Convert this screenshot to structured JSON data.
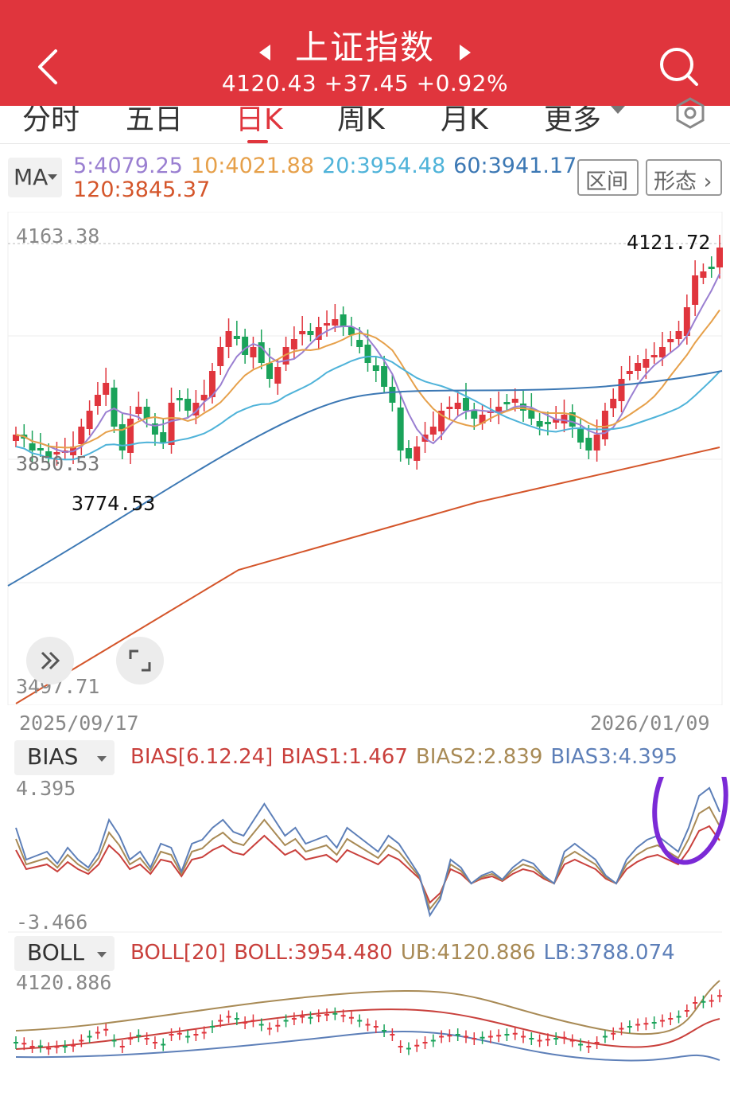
{
  "header": {
    "title": "上证指数",
    "price": "4120.43",
    "change": "+37.45",
    "change_pct": "+0.92%",
    "bg_color": "#e0353d"
  },
  "tabs": [
    {
      "label": "分时",
      "active": false
    },
    {
      "label": "五日",
      "active": false
    },
    {
      "label": "日K",
      "active": true
    },
    {
      "label": "周K",
      "active": false
    },
    {
      "label": "月K",
      "active": false
    },
    {
      "label": "更多",
      "active": false
    }
  ],
  "ma": {
    "selector": "MA",
    "ma5": "5:4079.25",
    "ma10": "10:4021.88",
    "ma20": "20:3954.48",
    "ma60": "60:3941.17",
    "ma120": "120:3845.37",
    "colors": {
      "ma5": "#9a7fd1",
      "ma10": "#e6a04a",
      "ma20": "#4fb3d9",
      "ma60": "#3c78b4",
      "ma120": "#d4552a"
    }
  },
  "buttons": {
    "range": "区间",
    "shape": "形态"
  },
  "main_chart": {
    "axis_top": "4163.38",
    "axis_mid": "3850.53",
    "axis_bottom": "3497.71",
    "high_label": "4121.72",
    "low_label": "3774.53",
    "start_date": "2025/09/17",
    "end_date": "2026/01/09",
    "up_color": "#e0353d",
    "down_color": "#1aa35a"
  },
  "bias": {
    "selector": "BIAS",
    "params": "BIAS[6.12.24]",
    "bias1": "BIAS1:1.467",
    "bias2": "BIAS2:2.839",
    "bias3": "BIAS3:4.395",
    "axis_top": "4.395",
    "axis_bottom": "-3.466",
    "colors": {
      "bias1": "#c9403c",
      "bias2": "#a88a55",
      "bias3": "#5d7fb8"
    }
  },
  "boll": {
    "selector": "BOLL",
    "params": "BOLL[20]",
    "mid": "BOLL:3954.480",
    "ub": "UB:4120.886",
    "lb": "LB:3788.074",
    "axis_top": "4120.886",
    "colors": {
      "mid": "#c9403c",
      "ub": "#a88a55",
      "lb": "#5d7fb8"
    }
  }
}
